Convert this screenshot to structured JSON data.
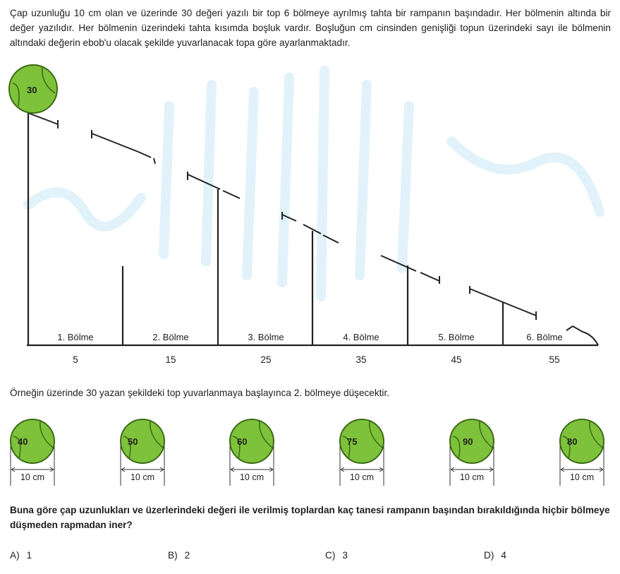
{
  "intro": "Çap uzunluğu 10 cm olan ve üzerinde 30 değeri yazılı bir top 6 bölmeye ayrılmış tahta bir rampanın başındadır. Her bölmenin altında bir değer yazılıdır. Her bölmenin üzerindeki tahta kısımda boşluk vardır. Boşluğun cm cinsinden genişliği topun üzerindeki sayı ile bölmenin altındaki değerin ebob'u olacak şekilde yuvarlanacak topa göre ayarlanmaktadır.",
  "ramp_ball": {
    "value": "30"
  },
  "segments": [
    {
      "label": "1. Bölme",
      "value": "5"
    },
    {
      "label": "2. Bölme",
      "value": "15"
    },
    {
      "label": "3. Bölme",
      "value": "25"
    },
    {
      "label": "4. Bölme",
      "value": "35"
    },
    {
      "label": "5. Bölme",
      "value": "45"
    },
    {
      "label": "6. Bölme",
      "value": "55"
    }
  ],
  "example": "Örneğin üzerinde 30 yazan şekildeki top yuvarlanmaya başlayınca 2. bölmeye düşecektir.",
  "balls": [
    {
      "value": "40",
      "diameter": "10 cm"
    },
    {
      "value": "50",
      "diameter": "10 cm"
    },
    {
      "value": "60",
      "diameter": "10 cm"
    },
    {
      "value": "75",
      "diameter": "10 cm"
    },
    {
      "value": "90",
      "diameter": "10 cm"
    },
    {
      "value": "80",
      "diameter": "10 cm"
    }
  ],
  "question": "Buna göre çap uzunlukları ve üzerlerindeki değeri ile verilmiş toplardan kaç tanesi rampanın başından bırakıldığında hiçbir bölmeye düşmeden rapmadan iner?",
  "options": [
    {
      "letter": "A)",
      "text": "1"
    },
    {
      "letter": "B)",
      "text": "2"
    },
    {
      "letter": "C)",
      "text": "3"
    },
    {
      "letter": "D)",
      "text": "4"
    }
  ],
  "colors": {
    "ball": "#7dc23a",
    "ball_line": "#3d6a17",
    "watermark": "#dff1fb"
  }
}
